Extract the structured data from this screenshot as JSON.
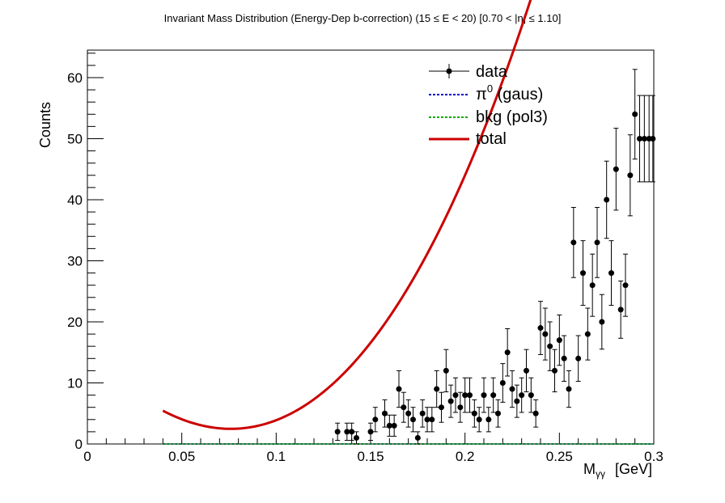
{
  "chart_data": {
    "type": "scatter",
    "title": "Invariant Mass Distribution (Energy-Dep b-correction)   (15 ≤ E < 20)   [0.70 < |η| ≤ 1.10]",
    "xlabel": "M",
    "xlabel_sub": "γγ",
    "xlabel_unit": "[GeV]",
    "ylabel": "Counts",
    "xlim": [
      0,
      0.3
    ],
    "ylim": [
      0,
      64.5
    ],
    "x_ticks": [
      0,
      0.05,
      0.1,
      0.15,
      0.2,
      0.25,
      0.3
    ],
    "x_tick_labels": [
      "0",
      "0.05",
      "0.1",
      "0.15",
      "0.2",
      "0.25",
      "0.3"
    ],
    "y_ticks": [
      0,
      10,
      20,
      30,
      40,
      50,
      60
    ],
    "y_tick_labels": [
      "0",
      "10",
      "20",
      "30",
      "40",
      "50",
      "60"
    ],
    "grid": false,
    "legend_position": "top-right",
    "legend": [
      {
        "label": "data",
        "style": "marker-errorbar",
        "color": "#000000"
      },
      {
        "label_base": "π",
        "label_sup": "0",
        "label_rest": " (gaus)",
        "style": "dotted",
        "color": "#0000cc"
      },
      {
        "label": "bkg (pol3)",
        "style": "dotted",
        "color": "#00aa00"
      },
      {
        "label": "total",
        "style": "solid",
        "color": "#cc0000"
      }
    ],
    "data": {
      "x": [
        0.1325,
        0.1375,
        0.14,
        0.1425,
        0.15,
        0.1525,
        0.1575,
        0.16,
        0.1625,
        0.165,
        0.1675,
        0.17,
        0.1725,
        0.175,
        0.1775,
        0.18,
        0.1825,
        0.185,
        0.1875,
        0.19,
        0.1925,
        0.195,
        0.1975,
        0.2,
        0.2025,
        0.205,
        0.2075,
        0.21,
        0.2125,
        0.215,
        0.2175,
        0.22,
        0.2225,
        0.225,
        0.2275,
        0.23,
        0.2325,
        0.235,
        0.2375,
        0.24,
        0.2425,
        0.245,
        0.2475,
        0.25,
        0.2525,
        0.255,
        0.2575,
        0.26,
        0.2625,
        0.265,
        0.2675,
        0.27,
        0.2725,
        0.275,
        0.2775,
        0.28,
        0.2825,
        0.285,
        0.2875,
        0.29,
        0.2925,
        0.295,
        0.2975,
        0.2995
      ],
      "y": [
        2,
        2,
        2,
        1,
        2,
        4,
        5,
        3,
        3,
        9,
        6,
        5,
        4,
        1,
        5,
        4,
        4,
        9,
        6,
        12,
        7,
        8,
        6,
        8,
        8,
        5,
        4,
        8,
        4,
        8,
        5,
        10,
        15,
        9,
        7,
        8,
        12,
        8,
        5,
        19,
        18,
        16,
        12,
        17,
        14,
        9,
        33,
        14,
        28,
        18,
        26,
        33,
        20,
        40,
        28,
        45,
        22,
        26,
        44,
        54,
        50,
        50,
        50,
        50
      ]
    },
    "total_fit": {
      "x_range": [
        0.04,
        0.3
      ],
      "coefficients_pol3": [
        15.14,
        -318.7,
        1809,
        2530
      ]
    },
    "signal_level": 0,
    "background_level": 0
  }
}
